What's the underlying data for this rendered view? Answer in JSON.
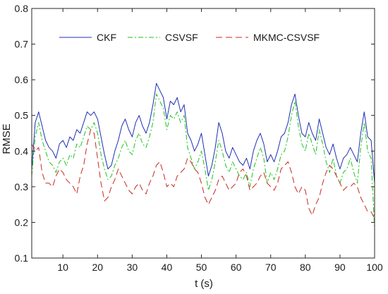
{
  "chart_data": {
    "type": "line",
    "title": "",
    "xlabel": "t (s)",
    "ylabel": "RMSE",
    "xlim": [
      1,
      100
    ],
    "ylim": [
      0.1,
      0.8
    ],
    "xticks": [
      10,
      20,
      30,
      40,
      50,
      60,
      70,
      80,
      90,
      100
    ],
    "yticks": [
      0.1,
      0.2,
      0.3,
      0.4,
      0.5,
      0.6,
      0.7,
      0.8
    ],
    "grid": false,
    "legend_position": "top",
    "x": [
      1,
      2,
      3,
      4,
      5,
      6,
      7,
      8,
      9,
      10,
      11,
      12,
      13,
      14,
      15,
      16,
      17,
      18,
      19,
      20,
      21,
      22,
      23,
      24,
      25,
      26,
      27,
      28,
      29,
      30,
      31,
      32,
      33,
      34,
      35,
      36,
      37,
      38,
      39,
      40,
      41,
      42,
      43,
      44,
      45,
      46,
      47,
      48,
      49,
      50,
      51,
      52,
      53,
      54,
      55,
      56,
      57,
      58,
      59,
      60,
      61,
      62,
      63,
      64,
      65,
      66,
      67,
      68,
      69,
      70,
      71,
      72,
      73,
      74,
      75,
      76,
      77,
      78,
      79,
      80,
      81,
      82,
      83,
      84,
      85,
      86,
      87,
      88,
      89,
      90,
      91,
      92,
      93,
      94,
      95,
      96,
      97,
      98,
      99,
      100
    ],
    "series": [
      {
        "name": "CKF",
        "color": "#1f2fb4",
        "dash": "",
        "values": [
          0.35,
          0.48,
          0.51,
          0.47,
          0.43,
          0.41,
          0.4,
          0.38,
          0.42,
          0.43,
          0.41,
          0.44,
          0.43,
          0.46,
          0.45,
          0.48,
          0.51,
          0.5,
          0.51,
          0.49,
          0.44,
          0.39,
          0.35,
          0.36,
          0.4,
          0.43,
          0.47,
          0.49,
          0.46,
          0.44,
          0.48,
          0.5,
          0.47,
          0.45,
          0.48,
          0.53,
          0.59,
          0.57,
          0.55,
          0.49,
          0.54,
          0.53,
          0.55,
          0.51,
          0.53,
          0.45,
          0.43,
          0.4,
          0.42,
          0.45,
          0.39,
          0.33,
          0.36,
          0.41,
          0.48,
          0.45,
          0.4,
          0.38,
          0.41,
          0.39,
          0.37,
          0.36,
          0.38,
          0.35,
          0.4,
          0.43,
          0.45,
          0.42,
          0.37,
          0.39,
          0.37,
          0.4,
          0.44,
          0.45,
          0.48,
          0.53,
          0.56,
          0.5,
          0.45,
          0.44,
          0.48,
          0.45,
          0.43,
          0.49,
          0.45,
          0.41,
          0.39,
          0.42,
          0.38,
          0.35,
          0.38,
          0.39,
          0.41,
          0.39,
          0.37,
          0.45,
          0.51,
          0.44,
          0.43,
          0.31
        ]
      },
      {
        "name": "CSVSF",
        "color": "#19c419",
        "dash": "7,3,2,3",
        "values": [
          0.33,
          0.44,
          0.48,
          0.43,
          0.4,
          0.37,
          0.36,
          0.34,
          0.37,
          0.38,
          0.36,
          0.39,
          0.38,
          0.42,
          0.41,
          0.44,
          0.47,
          0.46,
          0.48,
          0.45,
          0.39,
          0.35,
          0.32,
          0.33,
          0.36,
          0.38,
          0.41,
          0.43,
          0.4,
          0.39,
          0.43,
          0.45,
          0.42,
          0.41,
          0.44,
          0.48,
          0.56,
          0.54,
          0.52,
          0.46,
          0.5,
          0.49,
          0.51,
          0.48,
          0.5,
          0.41,
          0.38,
          0.35,
          0.37,
          0.4,
          0.35,
          0.29,
          0.32,
          0.37,
          0.43,
          0.4,
          0.36,
          0.34,
          0.37,
          0.35,
          0.33,
          0.32,
          0.34,
          0.3,
          0.35,
          0.38,
          0.41,
          0.38,
          0.31,
          0.34,
          0.32,
          0.35,
          0.39,
          0.4,
          0.44,
          0.5,
          0.54,
          0.47,
          0.42,
          0.4,
          0.45,
          0.42,
          0.39,
          0.46,
          0.42,
          0.37,
          0.34,
          0.38,
          0.33,
          0.31,
          0.34,
          0.35,
          0.38,
          0.34,
          0.31,
          0.41,
          0.48,
          0.4,
          0.38,
          0.18
        ]
      },
      {
        "name": "MKMC-CSVSF",
        "color": "#c8281e",
        "dash": "9,5",
        "values": [
          0.42,
          0.4,
          0.41,
          0.34,
          0.31,
          0.31,
          0.3,
          0.33,
          0.35,
          0.34,
          0.32,
          0.31,
          0.3,
          0.28,
          0.33,
          0.36,
          0.42,
          0.46,
          0.45,
          0.38,
          0.31,
          0.26,
          0.27,
          0.3,
          0.32,
          0.35,
          0.33,
          0.31,
          0.29,
          0.28,
          0.3,
          0.31,
          0.29,
          0.28,
          0.31,
          0.33,
          0.36,
          0.37,
          0.34,
          0.3,
          0.31,
          0.3,
          0.33,
          0.34,
          0.35,
          0.38,
          0.37,
          0.35,
          0.34,
          0.31,
          0.27,
          0.25,
          0.27,
          0.29,
          0.32,
          0.33,
          0.31,
          0.29,
          0.3,
          0.31,
          0.34,
          0.35,
          0.33,
          0.29,
          0.3,
          0.31,
          0.33,
          0.34,
          0.31,
          0.3,
          0.29,
          0.31,
          0.35,
          0.36,
          0.37,
          0.34,
          0.3,
          0.28,
          0.3,
          0.29,
          0.24,
          0.22,
          0.25,
          0.27,
          0.31,
          0.34,
          0.36,
          0.35,
          0.33,
          0.31,
          0.29,
          0.3,
          0.3,
          0.31,
          0.3,
          0.27,
          0.25,
          0.23,
          0.23,
          0.21
        ]
      }
    ]
  }
}
